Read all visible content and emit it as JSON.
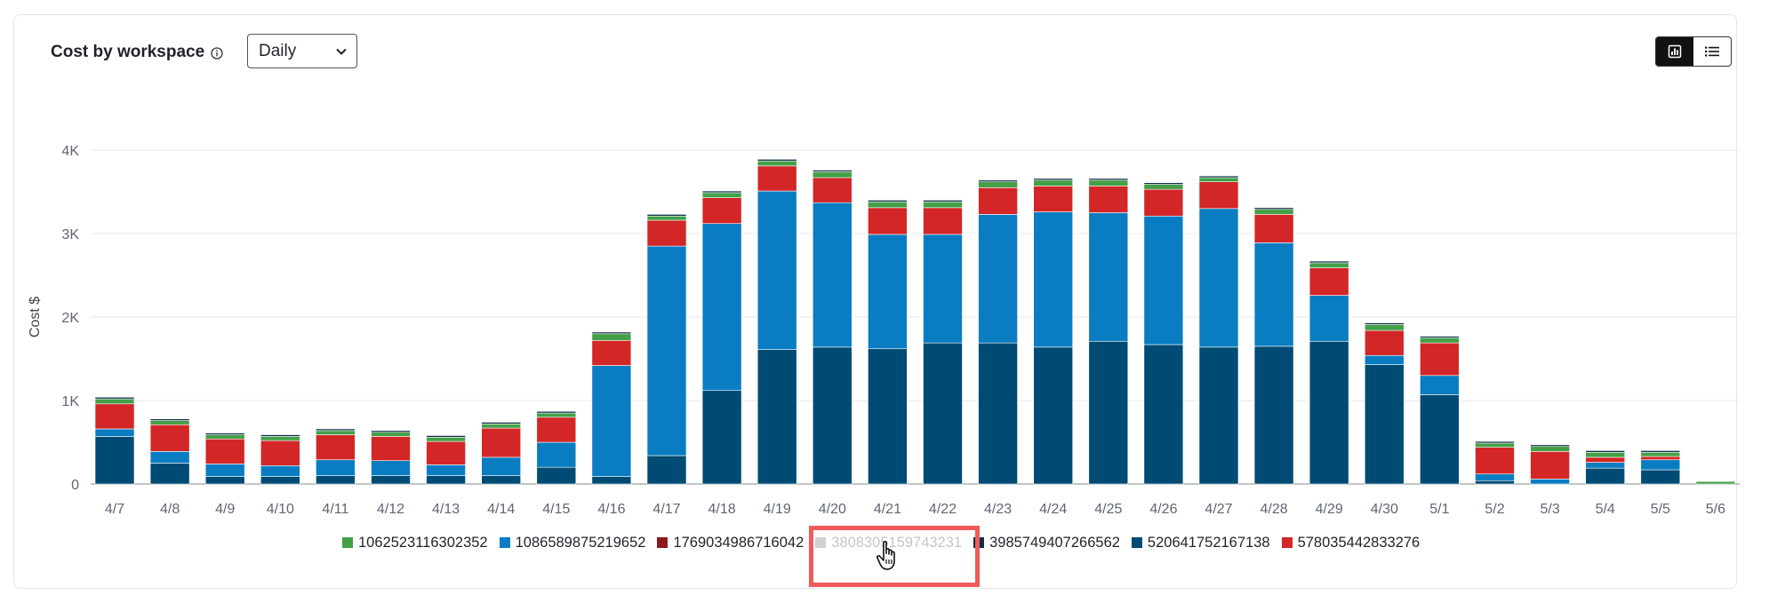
{
  "header": {
    "title": "Cost by workspace",
    "info_icon": "info-icon"
  },
  "period_select": {
    "value": "Daily"
  },
  "view_toggle": {
    "options": [
      "bar-chart-icon",
      "list-icon"
    ],
    "active": 0
  },
  "colors": {
    "1062523116302352": "#43a047",
    "1086589875219652": "#0a7dc2",
    "1769034986716042": "#8b1a1a",
    "3808305159743231": "#c8c8c8",
    "3985749407266562": "#0d2f45",
    "520641752167138": "#004b73",
    "578035442833276": "#d32626"
  },
  "chart_data": {
    "type": "bar",
    "stacked": true,
    "ylabel": "Cost $",
    "xlabel": "",
    "ylim": [
      0,
      4000
    ],
    "yticks": [
      "0",
      "1K",
      "2K",
      "3K",
      "4K"
    ],
    "grid": true,
    "legend_position": "bottom",
    "categories": [
      "4/7",
      "4/8",
      "4/9",
      "4/10",
      "4/11",
      "4/12",
      "4/13",
      "4/14",
      "4/15",
      "4/16",
      "4/17",
      "4/18",
      "4/19",
      "4/20",
      "4/21",
      "4/22",
      "4/23",
      "4/24",
      "4/25",
      "4/26",
      "4/27",
      "4/28",
      "4/29",
      "4/30",
      "5/1",
      "5/2",
      "5/3",
      "5/4",
      "5/5",
      "5/6"
    ],
    "series": [
      {
        "name": "520641752167138",
        "values": [
          570,
          250,
          90,
          90,
          100,
          100,
          100,
          100,
          200,
          90,
          340,
          1120,
          1610,
          1640,
          1620,
          1690,
          1690,
          1640,
          1710,
          1670,
          1640,
          1650,
          1710,
          1430,
          1070,
          40,
          0,
          190,
          170,
          0
        ]
      },
      {
        "name": "1086589875219652",
        "values": [
          90,
          140,
          150,
          130,
          190,
          180,
          130,
          220,
          300,
          1330,
          2510,
          2000,
          1900,
          1730,
          1370,
          1300,
          1540,
          1620,
          1540,
          1540,
          1660,
          1240,
          550,
          110,
          230,
          80,
          60,
          70,
          120,
          0
        ]
      },
      {
        "name": "578035442833276",
        "values": [
          300,
          320,
          300,
          300,
          300,
          290,
          280,
          350,
          300,
          300,
          310,
          310,
          300,
          300,
          320,
          320,
          320,
          310,
          320,
          320,
          320,
          340,
          330,
          300,
          390,
          320,
          330,
          60,
          40,
          0
        ]
      },
      {
        "name": "1062523116302352",
        "values": [
          60,
          50,
          50,
          50,
          50,
          50,
          50,
          50,
          50,
          80,
          50,
          60,
          60,
          70,
          70,
          70,
          70,
          70,
          70,
          60,
          50,
          60,
          60,
          70,
          60,
          50,
          60,
          60,
          50,
          30
        ]
      },
      {
        "name": "3985749407266562",
        "values": [
          20,
          20,
          20,
          20,
          20,
          20,
          20,
          20,
          20,
          20,
          20,
          20,
          20,
          20,
          20,
          20,
          20,
          20,
          20,
          20,
          20,
          20,
          20,
          20,
          20,
          20,
          20,
          20,
          20,
          0
        ]
      },
      {
        "name": "1769034986716042",
        "values": [
          0,
          0,
          0,
          0,
          0,
          0,
          0,
          0,
          0,
          0,
          0,
          0,
          0,
          0,
          0,
          0,
          0,
          0,
          0,
          0,
          0,
          0,
          0,
          0,
          0,
          0,
          0,
          0,
          0,
          0
        ]
      }
    ]
  },
  "legend": {
    "items": [
      {
        "name": "1062523116302352",
        "hidden": false
      },
      {
        "name": "1086589875219652",
        "hidden": false
      },
      {
        "name": "1769034986716042",
        "hidden": false
      },
      {
        "name": "3808305159743231",
        "hidden": true
      },
      {
        "name": "3985749407266562",
        "hidden": false
      },
      {
        "name": "520641752167138",
        "hidden": false
      },
      {
        "name": "578035442833276",
        "hidden": false
      }
    ]
  }
}
